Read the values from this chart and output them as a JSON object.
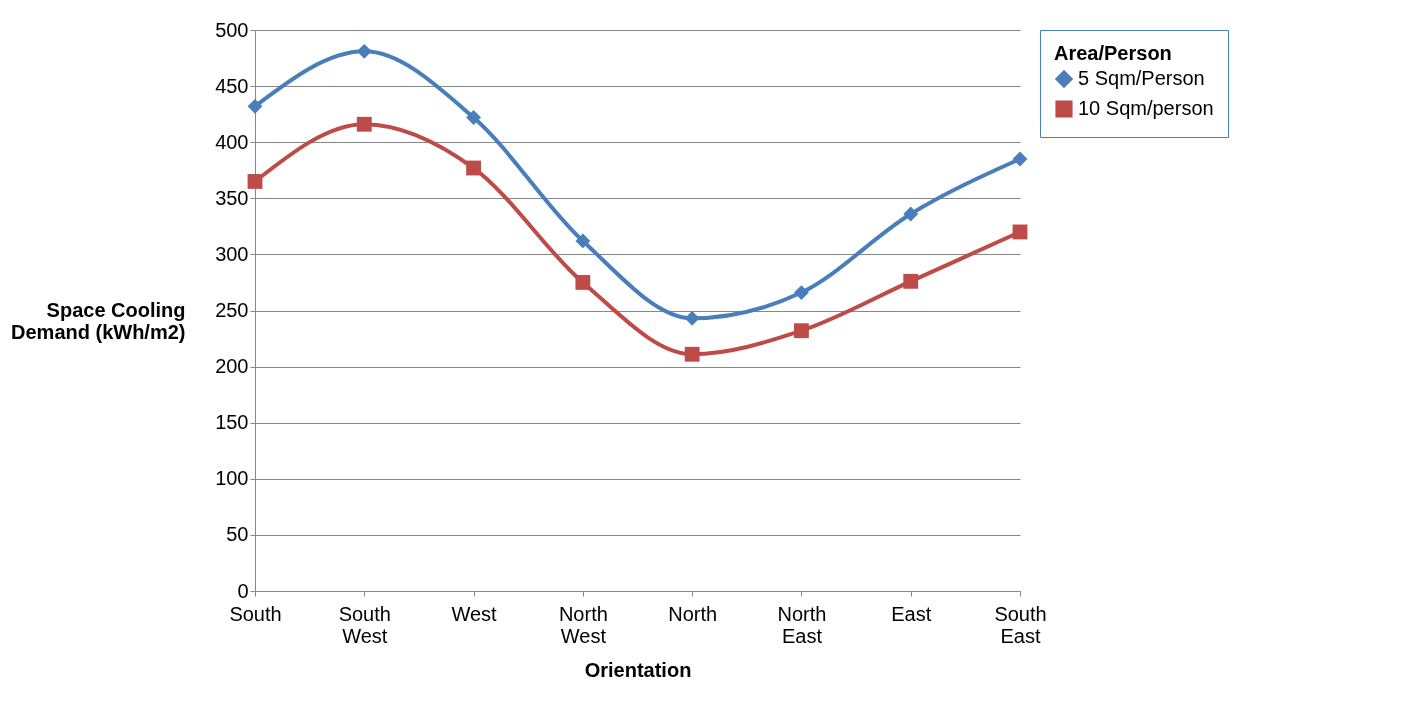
{
  "chart_data": {
    "type": "line",
    "xlabel": "Orientation",
    "ylabel": "Space Cooling Demand (kWh/m2)",
    "legend_title": "Area/Person",
    "categories": [
      "South",
      "South West",
      "West",
      "North West",
      "North",
      "North East",
      "East",
      "South East"
    ],
    "series": [
      {
        "name": "5 Sqm/Person",
        "color": "#4a7ebb",
        "marker": "diamond",
        "values": [
          432,
          481,
          422,
          312,
          243,
          266,
          336,
          385
        ]
      },
      {
        "name": "10 Sqm/person",
        "color": "#be4b48",
        "marker": "square",
        "values": [
          365,
          416,
          377,
          275,
          211,
          232,
          276,
          320
        ]
      }
    ],
    "ylim": [
      0,
      500
    ],
    "yticks": [
      0,
      50,
      100,
      150,
      200,
      250,
      300,
      350,
      400,
      450,
      500
    ],
    "grid": "y",
    "legend": "right"
  }
}
